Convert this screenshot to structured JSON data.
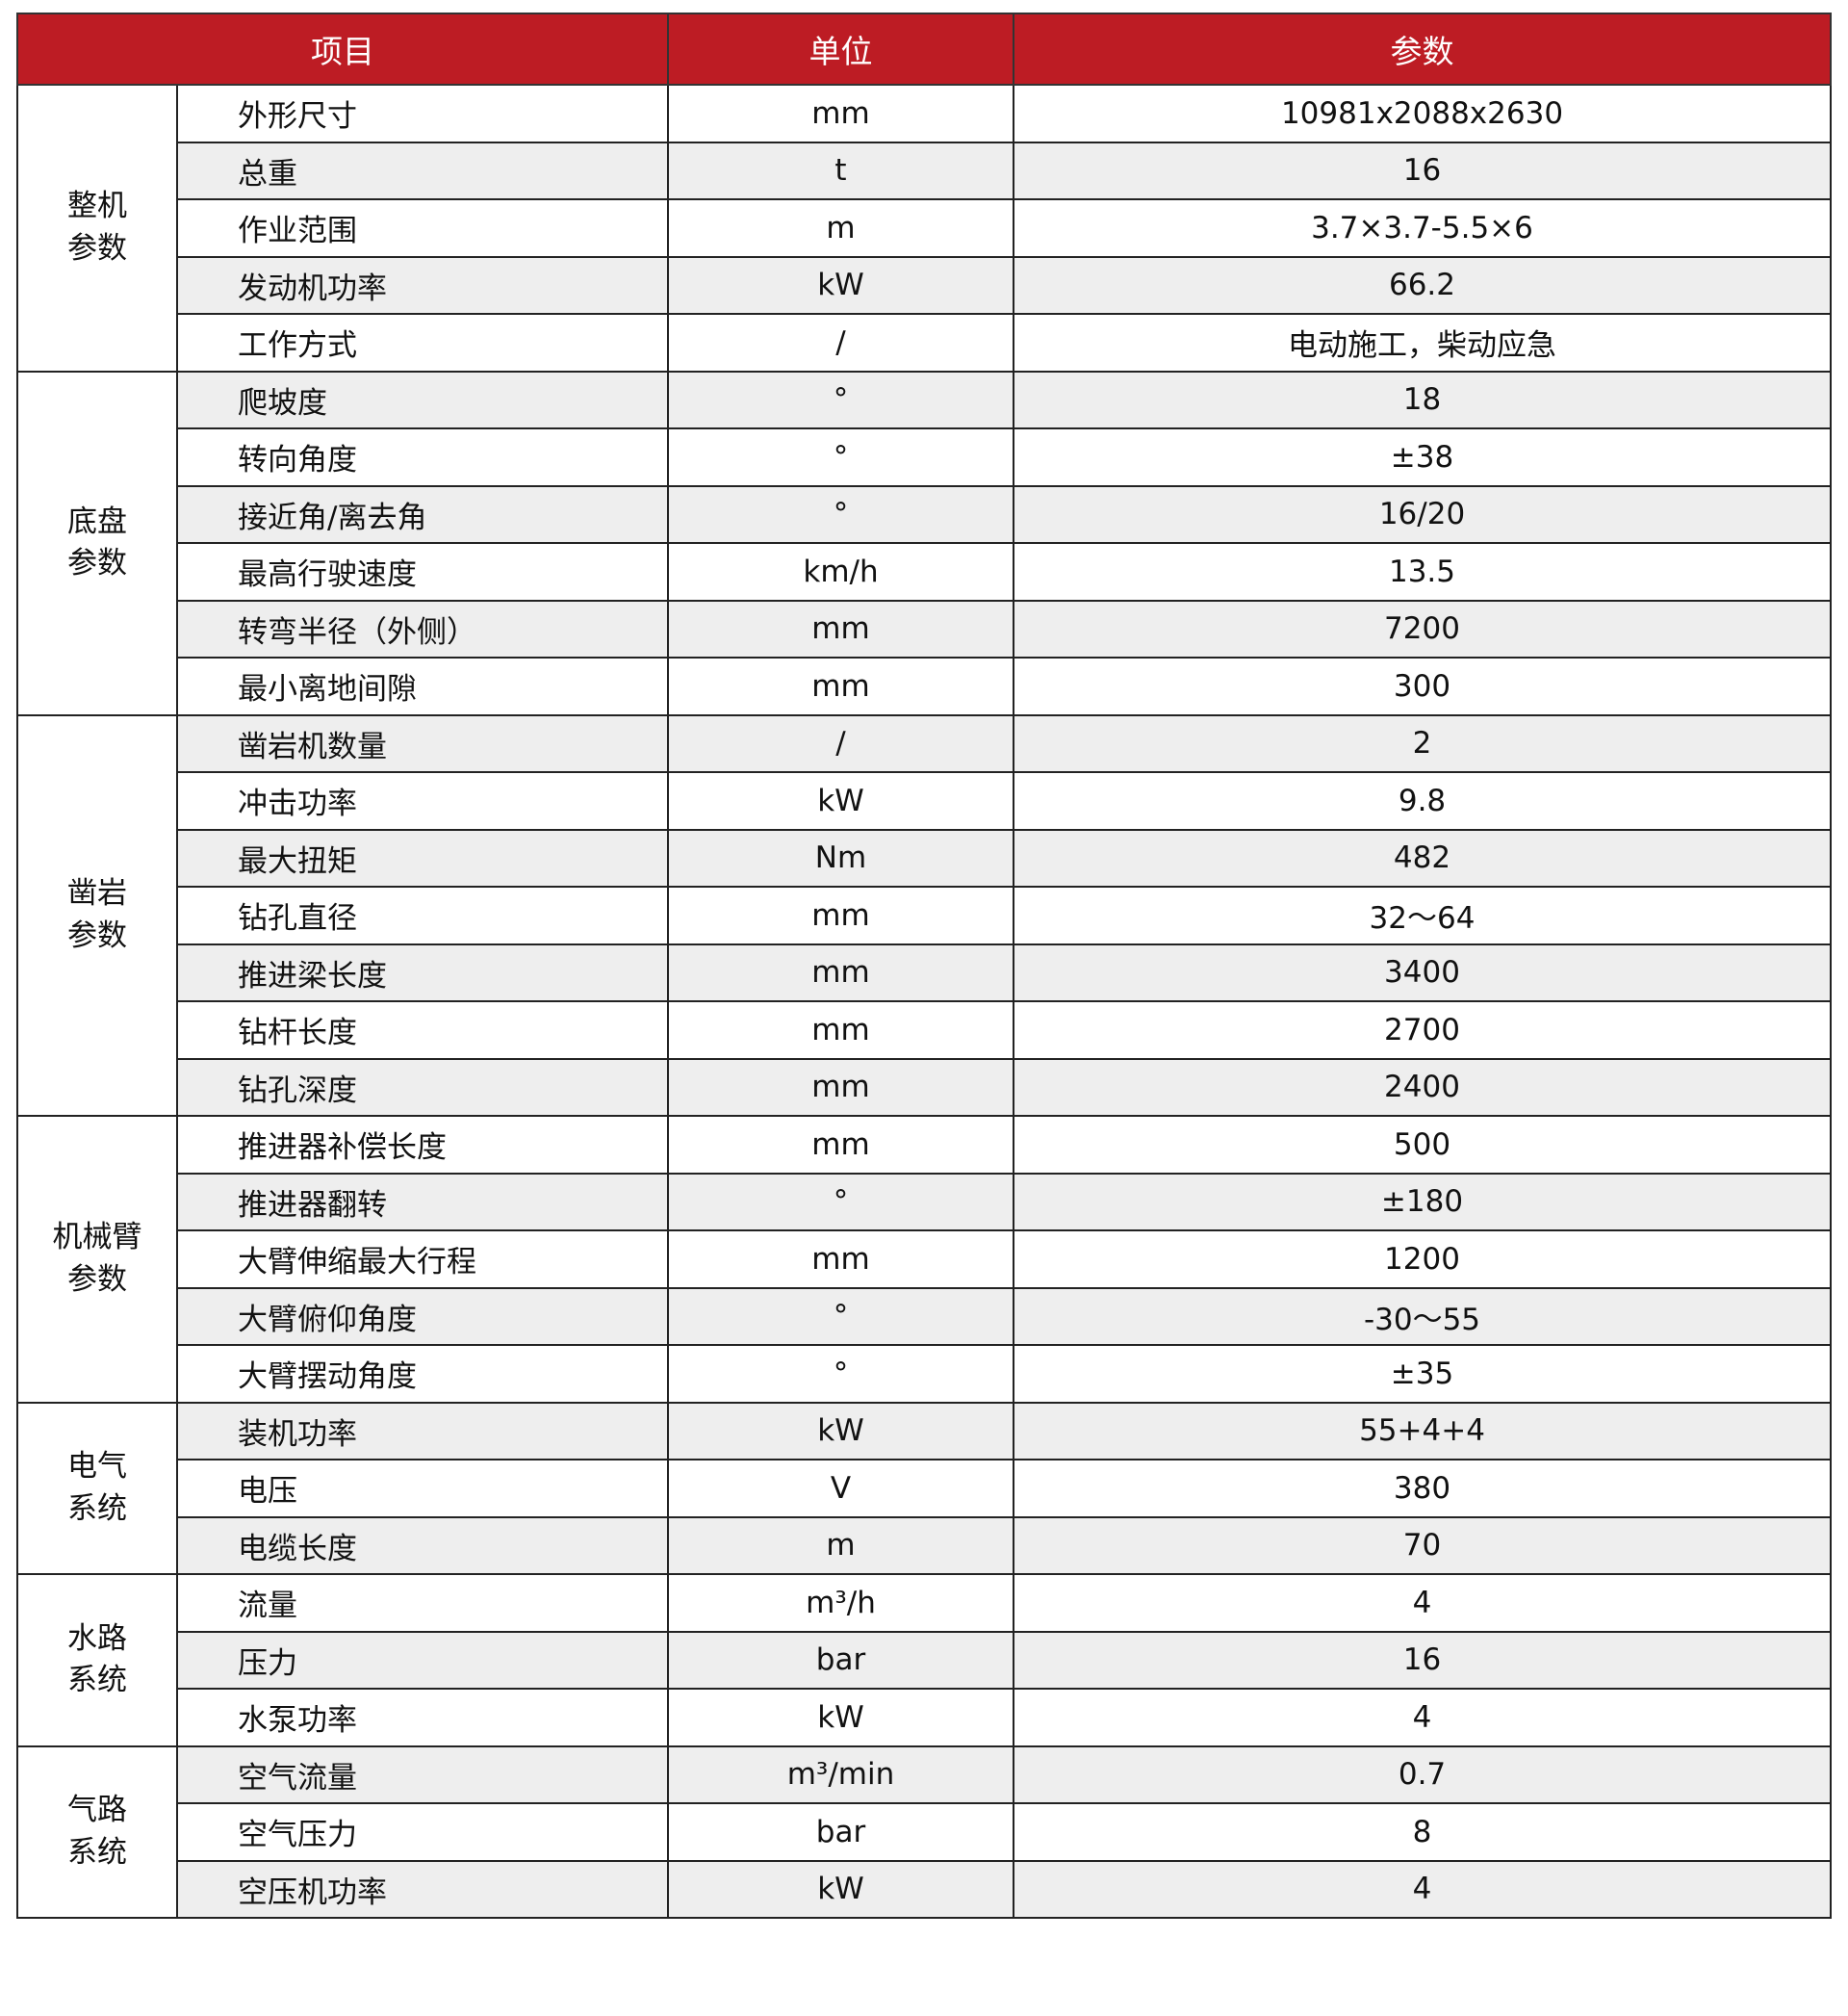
{
  "header": {
    "item": "项目",
    "unit": "单位",
    "param": "参数"
  },
  "colors": {
    "header_bg": "#bd1c24",
    "row_alt": "#eeeeee"
  },
  "groups": [
    {
      "label": [
        "整机",
        "参数"
      ],
      "rows": [
        {
          "item": "外形尺寸",
          "unit": "mm",
          "value": "10981x2088x2630"
        },
        {
          "item": "总重",
          "unit": "t",
          "value": "16"
        },
        {
          "item": "作业范围",
          "unit": "m",
          "value": "3.7×3.7-5.5×6"
        },
        {
          "item": "发动机功率",
          "unit": "kW",
          "value": "66.2"
        },
        {
          "item": "工作方式",
          "unit": "/",
          "value": "电动施工，柴动应急"
        }
      ]
    },
    {
      "label": [
        "底盘",
        "参数"
      ],
      "rows": [
        {
          "item": "爬坡度",
          "unit": "°",
          "value": "18"
        },
        {
          "item": "转向角度",
          "unit": "°",
          "value": "±38"
        },
        {
          "item": "接近角/离去角",
          "unit": "°",
          "value": "16/20"
        },
        {
          "item": "最高行驶速度",
          "unit": "km/h",
          "value": "13.5"
        },
        {
          "item": "转弯半径（外侧）",
          "unit": "mm",
          "value": "7200"
        },
        {
          "item": "最小离地间隙",
          "unit": "mm",
          "value": "300"
        }
      ]
    },
    {
      "label": [
        "凿岩",
        "参数"
      ],
      "rows": [
        {
          "item": "凿岩机数量",
          "unit": "/",
          "value": "2"
        },
        {
          "item": "冲击功率",
          "unit": "kW",
          "value": "9.8"
        },
        {
          "item": "最大扭矩",
          "unit": "Nm",
          "value": "482"
        },
        {
          "item": "钻孔直径",
          "unit": "mm",
          "value": "32～64"
        },
        {
          "item": "推进梁长度",
          "unit": "mm",
          "value": "3400"
        },
        {
          "item": "钻杆长度",
          "unit": "mm",
          "value": "2700"
        },
        {
          "item": "钻孔深度",
          "unit": "mm",
          "value": "2400"
        }
      ]
    },
    {
      "label": [
        "机械臂",
        "参数"
      ],
      "rows": [
        {
          "item": "推进器补偿长度",
          "unit": "mm",
          "value": "500"
        },
        {
          "item": "推进器翻转",
          "unit": "°",
          "value": "±180"
        },
        {
          "item": "大臂伸缩最大行程",
          "unit": "mm",
          "value": "1200"
        },
        {
          "item": "大臂俯仰角度",
          "unit": "°",
          "value": "-30～55"
        },
        {
          "item": "大臂摆动角度",
          "unit": "°",
          "value": "±35"
        }
      ]
    },
    {
      "label": [
        "电气",
        "系统"
      ],
      "rows": [
        {
          "item": "装机功率",
          "unit": "kW",
          "value": "55+4+4"
        },
        {
          "item": "电压",
          "unit": "V",
          "value": "380"
        },
        {
          "item": "电缆长度",
          "unit": "m",
          "value": "70"
        }
      ]
    },
    {
      "label": [
        "水路",
        "系统"
      ],
      "rows": [
        {
          "item": "流量",
          "unit": "m³/h",
          "value": "4"
        },
        {
          "item": "压力",
          "unit": "bar",
          "value": "16"
        },
        {
          "item": "水泵功率",
          "unit": "kW",
          "value": "4"
        }
      ]
    },
    {
      "label": [
        "气路",
        "系统"
      ],
      "rows": [
        {
          "item": "空气流量",
          "unit": "m³/min",
          "value": "0.7"
        },
        {
          "item": "空气压力",
          "unit": "bar",
          "value": "8"
        },
        {
          "item": "空压机功率",
          "unit": "kW",
          "value": "4"
        }
      ]
    }
  ]
}
